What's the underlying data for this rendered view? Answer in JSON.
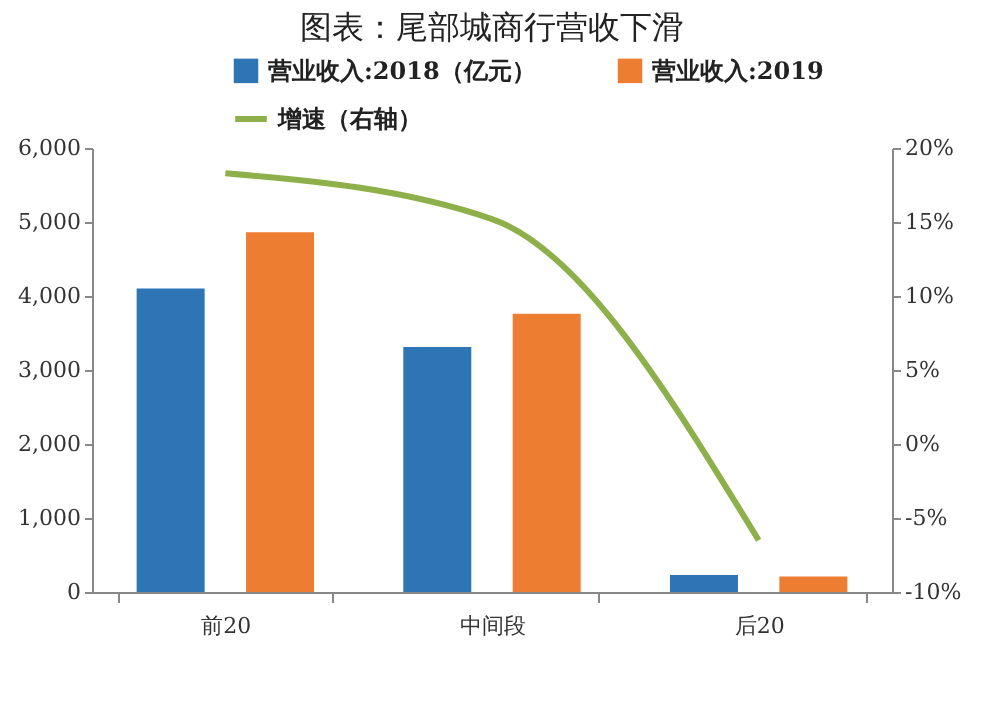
{
  "chart_data": {
    "type": "bar",
    "title": "图表：尾部城商行营收下滑",
    "categories": [
      "前20",
      "中间段",
      "后20"
    ],
    "series": [
      {
        "name": "营业收入:2018（亿元）",
        "color": "#2e75b6",
        "values": [
          4100,
          3310,
          230
        ]
      },
      {
        "name": "营业收入:2019",
        "color": "#ed7d31",
        "values": [
          4860,
          3760,
          210
        ]
      },
      {
        "name": "增速（右轴）",
        "color": "#8db04a",
        "type": "line",
        "axis": "y2",
        "values": [
          18.3,
          15.2,
          -6.5
        ]
      }
    ],
    "ylim": [
      0,
      6000
    ],
    "yticks": [
      0,
      {
        "value": 1000,
        "label": "1,000"
      },
      {
        "value": 2000,
        "label": "2,000"
      },
      {
        "value": 3000,
        "label": "3,000"
      },
      {
        "value": 4000,
        "label": "4,000"
      },
      {
        "value": 5000,
        "label": "5,000"
      },
      {
        "value": 6000,
        "label": "6,000"
      }
    ],
    "y2lim": [
      -10,
      20
    ],
    "y2ticks": [
      {
        "value": -10,
        "label": "-10%"
      },
      {
        "value": -5,
        "label": "-5%"
      },
      {
        "value": 0,
        "label": "0%"
      },
      {
        "value": 5,
        "label": "5%"
      },
      {
        "value": 10,
        "label": "10%"
      },
      {
        "value": 15,
        "label": "15%"
      },
      {
        "value": 20,
        "label": "20%"
      }
    ],
    "legend": "top",
    "grid": false
  }
}
